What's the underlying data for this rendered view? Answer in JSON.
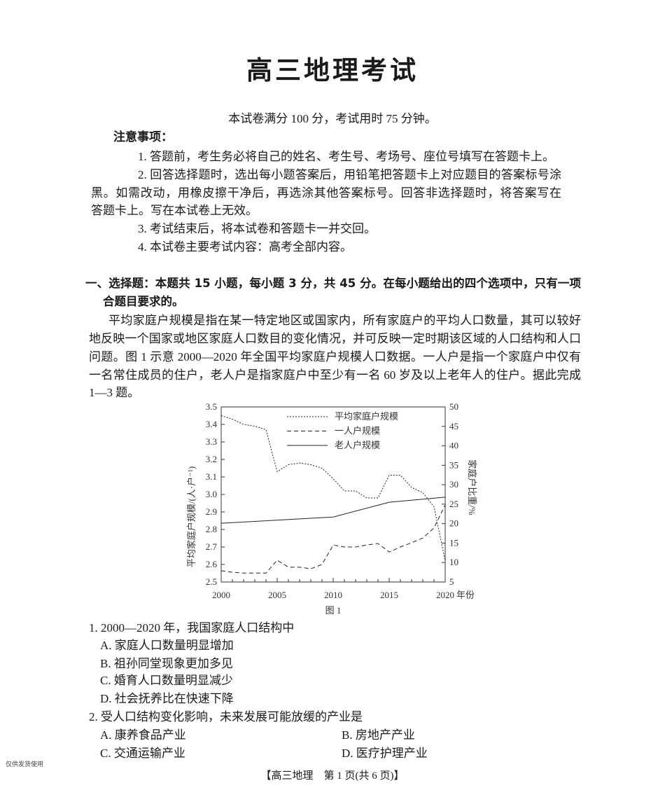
{
  "title": "高三地理考试",
  "intro": "本试卷满分 100 分，考试用时 75 分钟。",
  "notice": {
    "heading": "注意事项：",
    "items": [
      "1. 答题前，考生务必将自己的姓名、考生号、考场号、座位号填写在答题卡上。",
      "2. 回答选择题时，选出每小题答案后，用铅笔把答题卡上对应题目的答案标号涂",
      "黑。如需改动，用橡皮擦干净后，再选涂其他答案标号。回答非选择题时，将答案写在",
      "答题卡上。写在本试卷上无效。",
      "3. 考试结束后，将本试卷和答题卡一并交回。",
      "4. 本试卷主要考试内容：高考全部内容。"
    ]
  },
  "section": {
    "heading_line1": "一、选择题：本题共 15 小题，每小题 3 分，共 45 分。在每小题给出的四个选项中，只有一项是符",
    "heading_line2": "合题目要求的。",
    "paragraph": [
      "平均家庭户规模是指在某一特定地区或国家内，所有家庭户的平均人口数量，其可以较好",
      "地反映一个国家或地区家庭人口数目的变化情况，并可反映一定时期该区域的人口结构和人口",
      "问题。图 1 示意 2000—2020 年全国平均家庭户规模人口数据。一人户是指一个家庭户中仅有",
      "一名常住成员的住户，老人户是指家庭户中至少有一名 60 岁及以上老年人的住户。据此完成",
      "1—3 题。"
    ]
  },
  "chart_data": {
    "type": "line",
    "caption": "图 1",
    "xlabel": "年份",
    "ylabel_left": "平均家庭户规模/(人·户⁻¹)",
    "ylabel_right": "家庭户比重/%",
    "xlim": [
      2000,
      2020
    ],
    "ylim_left": [
      2.5,
      3.5
    ],
    "ylim_right": [
      5,
      50
    ],
    "x_ticks": [
      "2000",
      "2005",
      "2010",
      "2015",
      "2020"
    ],
    "y_ticks_left": [
      "2.5",
      "2.6",
      "2.7",
      "2.8",
      "2.9",
      "3.0",
      "3.1",
      "3.2",
      "3.3",
      "3.4",
      "3.5"
    ],
    "y_ticks_right": [
      "5",
      "10",
      "15",
      "20",
      "25",
      "30",
      "35",
      "40",
      "45",
      "50"
    ],
    "legend_position": "top",
    "x": [
      2000,
      2001,
      2002,
      2003,
      2004,
      2005,
      2006,
      2007,
      2008,
      2009,
      2010,
      2011,
      2012,
      2013,
      2014,
      2015,
      2016,
      2017,
      2018,
      2019,
      2020
    ],
    "series": [
      {
        "name": "平均家庭户规模",
        "axis": "left",
        "style": "dotted",
        "values": [
          3.45,
          3.43,
          3.4,
          3.39,
          3.37,
          3.13,
          3.17,
          3.18,
          3.17,
          3.15,
          3.09,
          3.02,
          3.02,
          2.98,
          2.98,
          3.11,
          3.11,
          3.04,
          3.01,
          2.93,
          2.62
        ]
      },
      {
        "name": "一人户规模",
        "axis": "right",
        "style": "dashed",
        "values": [
          7.9,
          7.5,
          7.3,
          7.3,
          7.3,
          10.6,
          8.8,
          8.8,
          8.4,
          9.5,
          14.5,
          14.0,
          14.0,
          14.5,
          14.9,
          12.7,
          14.0,
          15.1,
          16.3,
          18.9,
          24.8
        ]
      },
      {
        "name": "老人户规模",
        "axis": "right",
        "style": "solid",
        "x": [
          2000,
          2010,
          2015,
          2020
        ],
        "values": [
          20.1,
          21.7,
          25.5,
          26.8
        ]
      }
    ]
  },
  "questions": [
    {
      "stem": "1. 2000—2020 年，我国家庭人口结构中",
      "options": [
        "A. 家庭人口数量明显增加",
        "B. 祖孙同堂现象更加多见",
        "C. 婚育人口数量明显减少",
        "D. 社会抚养比在快速下降"
      ]
    },
    {
      "stem": "2. 受人口结构变化影响，未来发展可能放缓的产业是",
      "options": [
        "A. 康养食品产业",
        "B. 房地产产业",
        "C. 交通运输产业",
        "D. 医疗护理产业"
      ]
    }
  ],
  "watermark": "仅供发货使用",
  "footer": "【高三地理　第 1 页(共 6 页)】"
}
